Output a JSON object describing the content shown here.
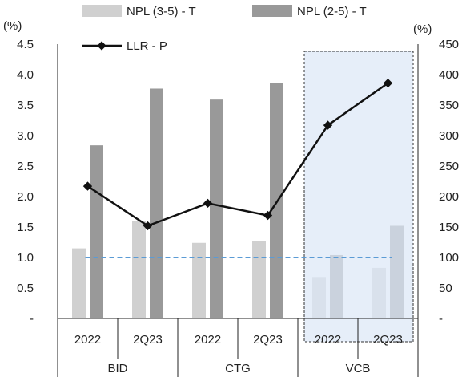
{
  "chart_data": {
    "type": "bar",
    "categories": [
      {
        "group": "BID",
        "period": "2022"
      },
      {
        "group": "BID",
        "period": "2Q23"
      },
      {
        "group": "CTG",
        "period": "2022"
      },
      {
        "group": "CTG",
        "period": "2Q23"
      },
      {
        "group": "VCB",
        "period": "2022"
      },
      {
        "group": "VCB",
        "period": "2Q23"
      }
    ],
    "groups": [
      "BID",
      "CTG",
      "VCB"
    ],
    "periods": [
      "2022",
      "2Q23",
      "2022",
      "2Q23",
      "2022",
      "2Q23"
    ],
    "series": [
      {
        "name": "NPL (3-5) - T",
        "type": "bar",
        "axis": "left",
        "color": "#d0d0d0",
        "values": [
          1.15,
          1.6,
          1.24,
          1.27,
          0.68,
          0.83
        ]
      },
      {
        "name": "NPL (2-5) - T",
        "type": "bar",
        "axis": "left",
        "color": "#999999",
        "values": [
          2.84,
          3.77,
          3.59,
          3.86,
          1.04,
          1.52
        ]
      },
      {
        "name": "LLR - P",
        "type": "line",
        "axis": "right",
        "color": "#111111",
        "values": [
          217,
          152,
          189,
          169,
          317,
          386
        ]
      }
    ],
    "reference_line": {
      "axis": "right",
      "value": 100,
      "color": "#5b9bd5"
    },
    "highlight": {
      "group": "VCB",
      "color": "#dce8f7"
    },
    "y_left": {
      "unit": "(%)",
      "min": 0,
      "max": 4.5,
      "ticks": [
        "-",
        "0.5",
        "1.0",
        "1.5",
        "2.0",
        "2.5",
        "3.0",
        "3.5",
        "4.0",
        "4.5"
      ]
    },
    "y_right": {
      "unit": "(%)",
      "min": 0,
      "max": 450,
      "ticks": [
        "-",
        "50",
        "100",
        "150",
        "200",
        "250",
        "300",
        "350",
        "400",
        "450"
      ]
    },
    "legend": {
      "placement": "top"
    },
    "grid": false
  }
}
